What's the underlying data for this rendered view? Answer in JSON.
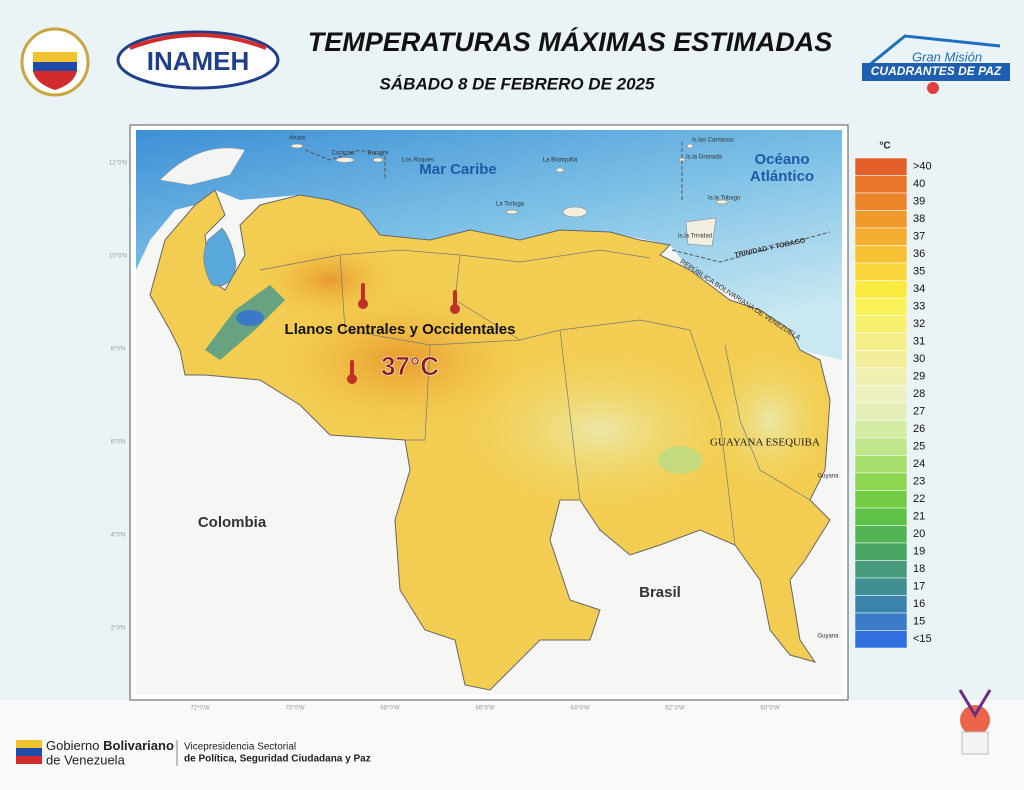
{
  "header": {
    "title": "TEMPERATURAS MÁXIMAS ESTIMADAS",
    "date": "SÁBADO 8 DE FEBRERO DE 2025",
    "logo_left": "INAMEH",
    "logo_right_top": "Gran Misión",
    "logo_right_bottom": "CUADRANTES DE PAZ"
  },
  "map": {
    "labels": {
      "sea": "Mar Caribe",
      "ocean_1": "Océano",
      "ocean_2": "Atlántico",
      "colombia": "Colombia",
      "brasil": "Brasil",
      "esequiba": "GUAYANA ESEQUIBA",
      "guyana_north": "Guyana",
      "guyana_south": "Guyana",
      "trinidad_tobago": "TRINIDAD Y TOBAGO",
      "venezuela_border": "REPÚBLICA BOLIVARIANA DE VENEZUELA",
      "aruba": "Aruba",
      "curazao": "Curazao",
      "bonaire": "Bonaire",
      "los_roques": "Los Roques",
      "la_tortuga": "La Tortuga",
      "la_blanquilla": "La Blanquilla",
      "carriacou": "Is.las Carriacou",
      "granada": "Is.la Granada",
      "tobago": "Is.la Tobago",
      "trinidad": "Is.la Trinidad"
    },
    "highlight": {
      "region": "Llanos Centrales y Occidentales",
      "value": "37°C"
    },
    "lat_labels": [
      "12°0'N",
      "10°0'N",
      "8°0'N",
      "6°0'N",
      "4°0'N",
      "2°0'N"
    ],
    "lon_labels": [
      "72°0'W",
      "70°0'W",
      "68°0'W",
      "66°0'W",
      "64°0'W",
      "62°0'W",
      "60°0'W"
    ]
  },
  "legend": {
    "unit": "°C",
    "items": [
      {
        "label": ">40",
        "color": "#e3602a"
      },
      {
        "label": "40",
        "color": "#e8752a"
      },
      {
        "label": "39",
        "color": "#ec852a"
      },
      {
        "label": "38",
        "color": "#f09a2c"
      },
      {
        "label": "37",
        "color": "#f3ad30"
      },
      {
        "label": "36",
        "color": "#f6c234"
      },
      {
        "label": "35",
        "color": "#f8d53a"
      },
      {
        "label": "34",
        "color": "#faea40"
      },
      {
        "label": "33",
        "color": "#fbf25a"
      },
      {
        "label": "32",
        "color": "#f7ef6e"
      },
      {
        "label": "31",
        "color": "#f4ee86"
      },
      {
        "label": "30",
        "color": "#f2ee9c"
      },
      {
        "label": "29",
        "color": "#f0efb2"
      },
      {
        "label": "28",
        "color": "#eef0c0"
      },
      {
        "label": "27",
        "color": "#e4f0b8"
      },
      {
        "label": "26",
        "color": "#d4eca4"
      },
      {
        "label": "25",
        "color": "#bfe68a"
      },
      {
        "label": "24",
        "color": "#a6de6c"
      },
      {
        "label": "23",
        "color": "#8cd652"
      },
      {
        "label": "22",
        "color": "#72cc44"
      },
      {
        "label": "21",
        "color": "#5ec248"
      },
      {
        "label": "20",
        "color": "#52b454"
      },
      {
        "label": "19",
        "color": "#4aa664"
      },
      {
        "label": "18",
        "color": "#449a7a"
      },
      {
        "label": "17",
        "color": "#3f8e92"
      },
      {
        "label": "16",
        "color": "#3a84ac"
      },
      {
        "label": "15",
        "color": "#3a7cc8"
      },
      {
        "label": "<15",
        "color": "#2f6fe0"
      }
    ]
  },
  "footer": {
    "gov_1": "Gobierno",
    "gov_2": "Bolivariano",
    "gov_3": "de Venezuela",
    "vice_1": "Vicepresidencia Sectorial",
    "vice_2": "de Política, Seguridad Ciudadana y Paz"
  }
}
